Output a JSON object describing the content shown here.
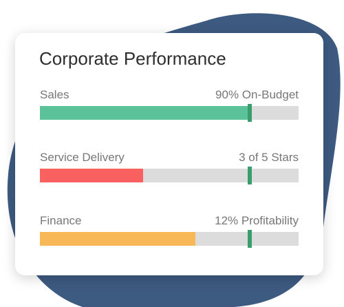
{
  "title": "Corporate Performance",
  "rows": [
    {
      "label": "Sales",
      "status": "90% On-Budget",
      "fill": 81,
      "target": 81,
      "color": "#5cc29a"
    },
    {
      "label": "Service Delivery",
      "status": "3 of 5 Stars",
      "fill": 40,
      "target": 81,
      "color": "#f96161"
    },
    {
      "label": "Finance",
      "status": "12% Profitability",
      "fill": 60,
      "target": 81,
      "color": "#f9b858"
    }
  ]
}
